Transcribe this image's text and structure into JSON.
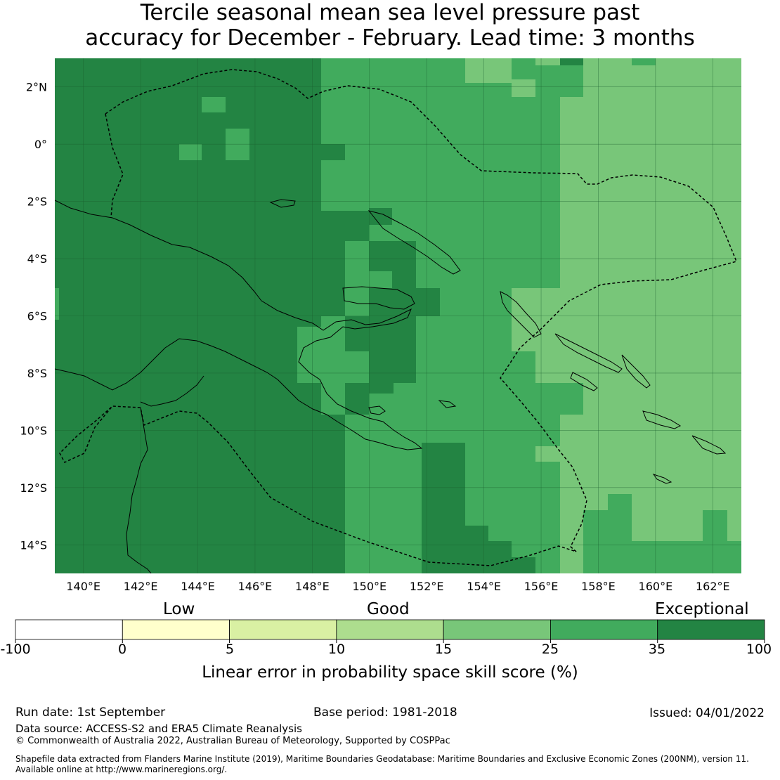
{
  "title": {
    "line1": "Tercile seasonal mean sea level pressure past",
    "line2": "accuracy for December - February. Lead time: 3 months"
  },
  "map": {
    "lat_labels": [
      "2°N",
      "0°",
      "2°S",
      "4°S",
      "6°S",
      "8°S",
      "10°S",
      "12°S",
      "14°S"
    ],
    "lon_labels": [
      "140°E",
      "142°E",
      "144°E",
      "146°E",
      "148°E",
      "150°E",
      "152°E",
      "154°E",
      "156°E",
      "158°E",
      "160°E",
      "162°E"
    ],
    "lat_values": [
      2,
      0,
      -2,
      -4,
      -6,
      -8,
      -10,
      -12,
      -14
    ],
    "lon_values": [
      140,
      142,
      144,
      146,
      148,
      150,
      152,
      154,
      156,
      158,
      160,
      162
    ],
    "extent": {
      "lon_min": 139,
      "lon_max": 163,
      "lat_min": -15,
      "lat_max": 3
    },
    "grid_lines": true,
    "colors": {
      "c0": "#ffffff",
      "c1": "#ffffcc",
      "c2": "#d9f0a3",
      "c3": "#addd8e",
      "c4": "#78c679",
      "c5": "#41ab5d",
      "c6": "#238443"
    }
  },
  "legend": {
    "categories": [
      "Low",
      "Good",
      "Exceptional"
    ],
    "ticks": [
      "-100",
      "0",
      "5",
      "10",
      "15",
      "25",
      "35",
      "100"
    ],
    "title": "Linear error in probability space skill score (%)"
  },
  "footer": {
    "run_date": "Run date: 1st September",
    "base_period": "Base period: 1981-2018",
    "issued": "Issued: 04/01/2022",
    "data_source": "Data source: ACCESS-S2 and ERA5 Climate Reanalysis",
    "copyright": "© Commonwealth of Australia 2022, Australian Bureau of Meteorology, Supported by COSPPac",
    "shapefile_line1": "Shapefile data extracted from Flanders Marine Institute (2019), Maritime Boundaries Geodatabase: Maritime Boundaries and Exclusive Economic Zones (200NM), version 11.",
    "shapefile_line2": "Available online at http://www.marineregions.org/."
  }
}
